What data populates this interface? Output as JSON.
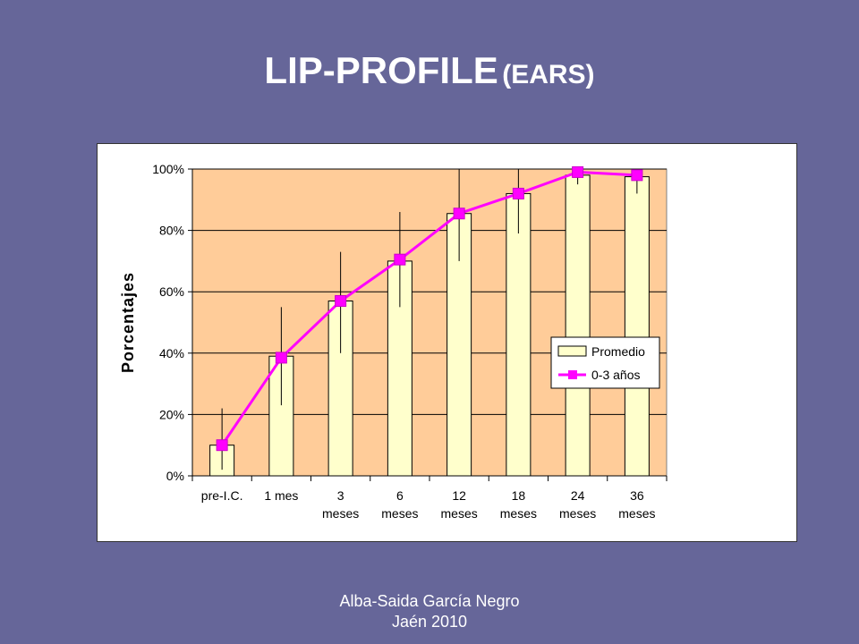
{
  "slide": {
    "title_main": "LIP-PROFILE",
    "title_sub": "(EARS)",
    "footer_line1": "Alba-Saida García Negro",
    "footer_line2": "Jaén 2010"
  },
  "colors": {
    "background": "#666699",
    "plot_area": "#FFCC99",
    "bar_fill": "#FFFFCC",
    "line": "#FF00FF"
  },
  "chart_data": {
    "type": "bar",
    "categories": [
      [
        "pre-I.C."
      ],
      [
        "1 mes"
      ],
      [
        "3",
        "meses"
      ],
      [
        "6",
        "meses"
      ],
      [
        "12",
        "meses"
      ],
      [
        "18",
        "meses"
      ],
      [
        "24",
        "meses"
      ],
      [
        "36",
        "meses"
      ]
    ],
    "series": [
      {
        "name": "Promedio",
        "kind": "bar",
        "values": [
          0.1,
          0.39,
          0.57,
          0.7,
          0.855,
          0.92,
          0.98,
          0.975
        ],
        "error_low": [
          0.02,
          0.23,
          0.4,
          0.55,
          0.7,
          0.79,
          0.95,
          0.92
        ],
        "error_high": [
          0.22,
          0.55,
          0.73,
          0.86,
          1.0,
          1.0,
          1.0,
          1.0
        ]
      },
      {
        "name": "0-3 años",
        "kind": "line",
        "values": [
          0.1,
          0.385,
          0.57,
          0.705,
          0.855,
          0.92,
          0.99,
          0.98
        ]
      }
    ],
    "ylabel": "Porcentajes",
    "xlabel": "",
    "ylim": [
      0,
      1
    ],
    "yticks": [
      "0%",
      "20%",
      "40%",
      "60%",
      "80%",
      "100%"
    ],
    "grid": true,
    "legend": "right"
  }
}
